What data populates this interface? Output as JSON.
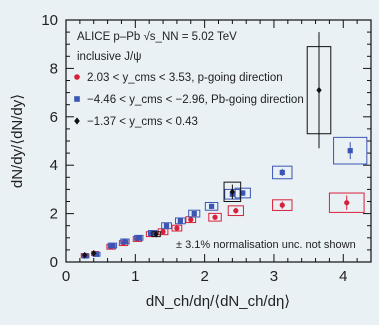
{
  "chart_data": {
    "type": "scatter",
    "xlabel": "dN_ch/dη/⟨dN_ch/dη⟩",
    "ylabel": "dN/dy/⟨dN/dy⟩",
    "xlim": [
      0,
      4.4
    ],
    "ylim": [
      0,
      10
    ],
    "x_ticks": [
      0,
      1,
      2,
      3,
      4
    ],
    "y_ticks": [
      0,
      2,
      4,
      6,
      8,
      10
    ],
    "x_tick_labels": [
      "0",
      "1",
      "2",
      "3",
      "4"
    ],
    "y_tick_labels": [
      "0",
      "2",
      "4",
      "6",
      "8",
      "10"
    ],
    "legend": {
      "placement": "top-left",
      "header_line1": "ALICE p–Pb √s_NN = 5.02 TeV",
      "header_line2": "inclusive J/ψ"
    },
    "note": "± 3.1% normalisation unc. not shown",
    "series": [
      {
        "name": "2.03 < y_cms < 3.53, p-going direction",
        "color": "#d8203a",
        "marker": "circle",
        "points": [
          {
            "x": 0.27,
            "y": 0.27,
            "xerr": 0.04,
            "yerr": 0.06,
            "syst_w": 0.05,
            "syst_h": 0.08
          },
          {
            "x": 0.42,
            "y": 0.35,
            "xerr": 0.04,
            "yerr": 0.06,
            "syst_w": 0.05,
            "syst_h": 0.08
          },
          {
            "x": 0.65,
            "y": 0.63,
            "xerr": 0.04,
            "yerr": 0.08,
            "syst_w": 0.06,
            "syst_h": 0.1
          },
          {
            "x": 0.83,
            "y": 0.78,
            "xerr": 0.04,
            "yerr": 0.08,
            "syst_w": 0.06,
            "syst_h": 0.1
          },
          {
            "x": 1.03,
            "y": 0.95,
            "xerr": 0.04,
            "yerr": 0.08,
            "syst_w": 0.06,
            "syst_h": 0.1
          },
          {
            "x": 1.22,
            "y": 1.15,
            "xerr": 0.04,
            "yerr": 0.08,
            "syst_w": 0.06,
            "syst_h": 0.1
          },
          {
            "x": 1.4,
            "y": 1.25,
            "xerr": 0.04,
            "yerr": 0.08,
            "syst_w": 0.07,
            "syst_h": 0.12
          },
          {
            "x": 1.6,
            "y": 1.4,
            "xerr": 0.04,
            "yerr": 0.08,
            "syst_w": 0.07,
            "syst_h": 0.12
          },
          {
            "x": 1.8,
            "y": 1.75,
            "xerr": 0.04,
            "yerr": 0.1,
            "syst_w": 0.07,
            "syst_h": 0.12
          },
          {
            "x": 2.15,
            "y": 1.85,
            "xerr": 0.04,
            "yerr": 0.1,
            "syst_w": 0.09,
            "syst_h": 0.16
          },
          {
            "x": 2.45,
            "y": 2.12,
            "xerr": 0.04,
            "yerr": 0.12,
            "syst_w": 0.11,
            "syst_h": 0.2
          },
          {
            "x": 3.12,
            "y": 2.35,
            "xerr": 0.04,
            "yerr": 0.15,
            "syst_w": 0.14,
            "syst_h": 0.22
          },
          {
            "x": 4.05,
            "y": 2.45,
            "xerr": 0.04,
            "yerr": 0.3,
            "syst_w": 0.25,
            "syst_h": 0.4
          }
        ]
      },
      {
        "name": "−4.46 < y_cms < −2.96, Pb-going direction",
        "color": "#3a55b4",
        "marker": "square",
        "points": [
          {
            "x": 0.28,
            "y": 0.25,
            "xerr": 0.04,
            "yerr": 0.06,
            "syst_w": 0.05,
            "syst_h": 0.08
          },
          {
            "x": 0.44,
            "y": 0.32,
            "xerr": 0.04,
            "yerr": 0.06,
            "syst_w": 0.05,
            "syst_h": 0.08
          },
          {
            "x": 0.67,
            "y": 0.68,
            "xerr": 0.04,
            "yerr": 0.08,
            "syst_w": 0.06,
            "syst_h": 0.1
          },
          {
            "x": 0.85,
            "y": 0.85,
            "xerr": 0.04,
            "yerr": 0.08,
            "syst_w": 0.06,
            "syst_h": 0.1
          },
          {
            "x": 1.05,
            "y": 1.0,
            "xerr": 0.04,
            "yerr": 0.08,
            "syst_w": 0.06,
            "syst_h": 0.1
          },
          {
            "x": 1.25,
            "y": 1.2,
            "xerr": 0.04,
            "yerr": 0.08,
            "syst_w": 0.06,
            "syst_h": 0.1
          },
          {
            "x": 1.45,
            "y": 1.5,
            "xerr": 0.04,
            "yerr": 0.08,
            "syst_w": 0.07,
            "syst_h": 0.12
          },
          {
            "x": 1.65,
            "y": 1.7,
            "xerr": 0.04,
            "yerr": 0.08,
            "syst_w": 0.07,
            "syst_h": 0.12
          },
          {
            "x": 1.85,
            "y": 2.0,
            "xerr": 0.04,
            "yerr": 0.1,
            "syst_w": 0.08,
            "syst_h": 0.14
          },
          {
            "x": 2.1,
            "y": 2.3,
            "xerr": 0.04,
            "yerr": 0.1,
            "syst_w": 0.09,
            "syst_h": 0.16
          },
          {
            "x": 2.4,
            "y": 2.8,
            "xerr": 0.04,
            "yerr": 0.12,
            "syst_w": 0.11,
            "syst_h": 0.2
          },
          {
            "x": 2.55,
            "y": 2.85,
            "xerr": 0.04,
            "yerr": 0.12,
            "syst_w": 0.11,
            "syst_h": 0.2
          },
          {
            "x": 3.12,
            "y": 3.7,
            "xerr": 0.04,
            "yerr": 0.15,
            "syst_w": 0.14,
            "syst_h": 0.26
          },
          {
            "x": 4.1,
            "y": 4.6,
            "xerr": 0.04,
            "yerr": 0.35,
            "syst_w": 0.24,
            "syst_h": 0.55
          }
        ]
      },
      {
        "name": "−1.37 < y_cms < 0.43",
        "color": "#111111",
        "marker": "diamond",
        "points": [
          {
            "x": 0.27,
            "y": 0.28,
            "xerr": 0.04,
            "yerr": 0.08,
            "syst_w": 0,
            "syst_h": 0
          },
          {
            "x": 0.4,
            "y": 0.36,
            "xerr": 0.04,
            "yerr": 0.08,
            "syst_w": 0,
            "syst_h": 0
          },
          {
            "x": 1.3,
            "y": 1.15,
            "xerr": 0.04,
            "yerr": 0.1,
            "syst_w": 0.06,
            "syst_h": 0.1
          },
          {
            "x": 2.4,
            "y": 2.9,
            "xerr": 0.04,
            "yerr": 0.3,
            "syst_w": 0.12,
            "syst_h": 0.4
          },
          {
            "x": 3.65,
            "y": 7.1,
            "xerr": 0.04,
            "yerr": 2.4,
            "syst_w": 0.17,
            "syst_h": 1.8
          }
        ]
      }
    ]
  }
}
